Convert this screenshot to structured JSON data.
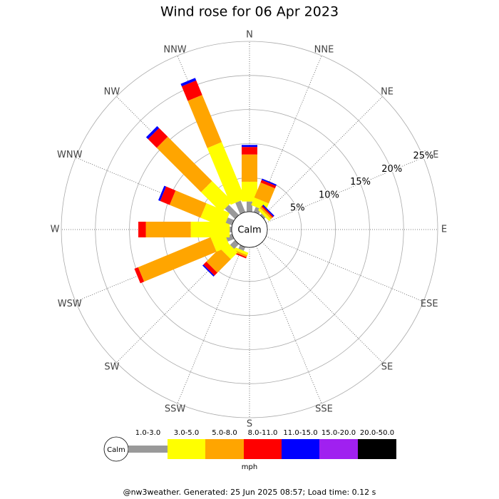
{
  "chart_data": {
    "type": "windrose",
    "title": "Wind rose for 06 Apr 2023",
    "directions": [
      "N",
      "NNE",
      "NE",
      "ENE",
      "E",
      "ESE",
      "SE",
      "SSE",
      "S",
      "SSW",
      "SW",
      "WSW",
      "W",
      "WNW",
      "NW",
      "NNW"
    ],
    "center_label": "Calm",
    "rlim": [
      0,
      25
    ],
    "rticks": [
      {
        "value": 5,
        "label": "5%"
      },
      {
        "value": 10,
        "label": "10%"
      },
      {
        "value": 15,
        "label": "15%"
      },
      {
        "value": 20,
        "label": "20%"
      },
      {
        "value": 25,
        "label": "25%"
      }
    ],
    "unit": "mph",
    "series": [
      {
        "name": "1.0-3.0",
        "color": "#999999",
        "values": [
          1.5,
          0.8,
          0.3,
          0,
          0,
          0,
          0,
          0,
          0,
          0.6,
          1.0,
          1.0,
          0.3,
          1.0,
          2.1,
          1.8
        ]
      },
      {
        "name": "3.0-5.0",
        "color": "#ffff00",
        "values": [
          2.9,
          1.2,
          0.4,
          0,
          0,
          0,
          0,
          0,
          0,
          0.4,
          1.4,
          2.1,
          5.7,
          3.7,
          4.2,
          9.0
        ]
      },
      {
        "name": "5.0-8.0",
        "color": "#ffa500",
        "values": [
          4.0,
          2.4,
          0.3,
          0,
          0,
          0,
          0,
          0,
          0,
          0.3,
          2.8,
          11.5,
          6.6,
          4.9,
          9.2,
          7.5
        ]
      },
      {
        "name": "8.0-11.0",
        "color": "#ff0000",
        "values": [
          1.1,
          0.4,
          0.2,
          0,
          0,
          0,
          0,
          0,
          0,
          0.2,
          0.6,
          0.6,
          1.1,
          1.5,
          1.8,
          2.3
        ]
      },
      {
        "name": "11.0-15.0",
        "color": "#0000ff",
        "values": [
          0.3,
          0.2,
          0.2,
          0,
          0,
          0,
          0,
          0,
          0,
          0,
          0.2,
          0,
          0,
          0.3,
          0.4,
          0.4
        ]
      },
      {
        "name": "15.0-20.0",
        "color": "#a020f0",
        "values": [
          0,
          0,
          0,
          0,
          0,
          0,
          0,
          0,
          0,
          0,
          0,
          0,
          0,
          0,
          0,
          0
        ]
      },
      {
        "name": "20.0-50.0",
        "color": "#000000",
        "values": [
          0,
          0,
          0,
          0,
          0,
          0,
          0,
          0,
          0,
          0,
          0,
          0,
          0,
          0,
          0,
          0
        ]
      }
    ],
    "footer": "@nw3weather.  Generated: 25 Jun 2025 08:57; Load time: 0.12 s"
  }
}
